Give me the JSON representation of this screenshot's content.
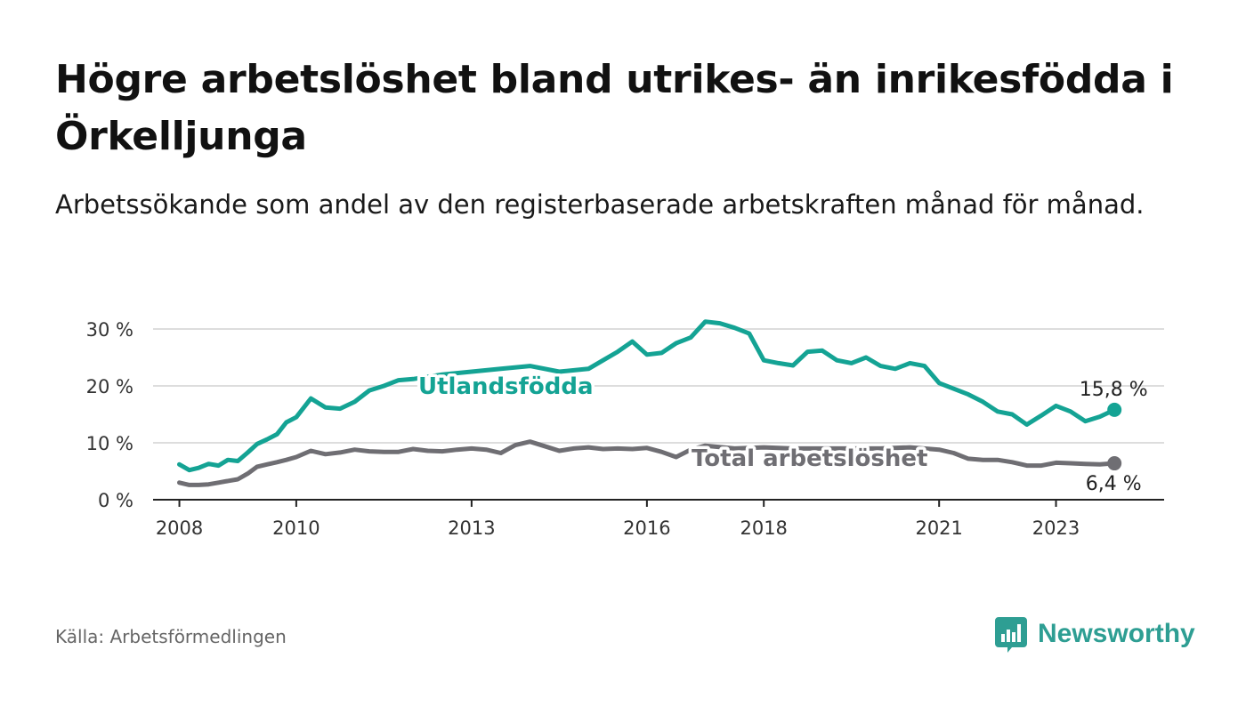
{
  "title": "Högre arbetslöshet bland utrikes- än inrikesfödda i Örkelljunga",
  "subtitle": "Arbetssökande som andel av den registerbaserade arbetskraften månad för månad.",
  "source": "Källa: Arbetsförmedlingen",
  "brand": "Newsworthy",
  "colors": {
    "utlandsfodda": "#14a394",
    "total": "#6f6e73",
    "grid": "#dddddd",
    "axis": "#222222",
    "brand": "#2e9e93"
  },
  "chart_data": {
    "type": "line",
    "title": "Högre arbetslöshet bland utrikes- än inrikesfödda i Örkelljunga",
    "xlabel": "",
    "ylabel": "",
    "xlim": [
      2007.55,
      2024.85
    ],
    "ylim": [
      0,
      30
    ],
    "y_ticks": [
      0,
      10,
      20,
      30
    ],
    "y_tick_labels": [
      "0 %",
      "10 %",
      "20 %",
      "30 %"
    ],
    "x_ticks": [
      2008,
      2010,
      2013,
      2016,
      2018,
      2021,
      2023
    ],
    "x_tick_labels": [
      "2008",
      "2010",
      "2013",
      "2016",
      "2018",
      "2021",
      "2023"
    ],
    "grid": true,
    "series": [
      {
        "name": "Utlandsfödda",
        "color": "#14a394",
        "end_label": "15,8 %",
        "x": [
          2008.0,
          2008.17,
          2008.33,
          2008.5,
          2008.67,
          2008.83,
          2009.0,
          2009.17,
          2009.33,
          2009.5,
          2009.67,
          2009.83,
          2010.0,
          2010.25,
          2010.5,
          2010.75,
          2011.0,
          2011.25,
          2011.5,
          2011.75,
          2012.0,
          2012.5,
          2013.0,
          2013.5,
          2014.0,
          2014.5,
          2015.0,
          2015.25,
          2015.5,
          2015.75,
          2016.0,
          2016.25,
          2016.5,
          2016.75,
          2017.0,
          2017.25,
          2017.5,
          2017.75,
          2018.0,
          2018.25,
          2018.5,
          2018.75,
          2019.0,
          2019.25,
          2019.5,
          2019.75,
          2020.0,
          2020.25,
          2020.5,
          2020.75,
          2021.0,
          2021.25,
          2021.5,
          2021.75,
          2022.0,
          2022.25,
          2022.5,
          2022.75,
          2023.0,
          2023.25,
          2023.5,
          2023.75,
          2024.0
        ],
        "y": [
          6.2,
          5.2,
          5.6,
          6.3,
          6.0,
          7.0,
          6.8,
          8.3,
          9.8,
          10.6,
          11.5,
          13.6,
          14.5,
          17.8,
          16.2,
          16.0,
          17.2,
          19.2,
          20.0,
          21.0,
          21.2,
          22.0,
          22.5,
          23.0,
          23.5,
          22.5,
          23.0,
          24.5,
          26.0,
          27.8,
          25.5,
          25.8,
          27.5,
          28.5,
          31.3,
          31.0,
          30.2,
          29.2,
          24.5,
          24.0,
          23.6,
          26.0,
          26.2,
          24.5,
          24.0,
          25.0,
          23.5,
          23.0,
          24.0,
          23.5,
          20.5,
          19.5,
          18.5,
          17.2,
          15.5,
          15.0,
          13.2,
          14.8,
          16.5,
          15.5,
          13.8,
          14.6,
          15.8
        ]
      },
      {
        "name": "Total arbetslöshet",
        "color": "#6f6e73",
        "end_label": "6,4 %",
        "x": [
          2008.0,
          2008.17,
          2008.33,
          2008.5,
          2008.67,
          2008.83,
          2009.0,
          2009.17,
          2009.33,
          2009.5,
          2009.67,
          2009.83,
          2010.0,
          2010.25,
          2010.5,
          2010.75,
          2011.0,
          2011.25,
          2011.5,
          2011.75,
          2012.0,
          2012.25,
          2012.5,
          2012.75,
          2013.0,
          2013.25,
          2013.5,
          2013.75,
          2014.0,
          2014.25,
          2014.5,
          2014.75,
          2015.0,
          2015.25,
          2015.5,
          2015.75,
          2016.0,
          2016.25,
          2016.5,
          2016.75,
          2017.0,
          2017.5,
          2018.0,
          2018.5,
          2019.0,
          2019.5,
          2020.0,
          2020.5,
          2021.0,
          2021.25,
          2021.5,
          2021.75,
          2022.0,
          2022.25,
          2022.5,
          2022.75,
          2023.0,
          2023.25,
          2023.5,
          2023.75,
          2024.0
        ],
        "y": [
          3.0,
          2.6,
          2.6,
          2.7,
          3.0,
          3.3,
          3.6,
          4.6,
          5.8,
          6.2,
          6.6,
          7.0,
          7.5,
          8.6,
          8.0,
          8.3,
          8.8,
          8.5,
          8.4,
          8.4,
          8.9,
          8.6,
          8.5,
          8.8,
          9.0,
          8.8,
          8.2,
          9.6,
          10.2,
          9.4,
          8.6,
          9.0,
          9.2,
          8.9,
          9.0,
          8.9,
          9.1,
          8.4,
          7.5,
          8.8,
          9.5,
          9.0,
          9.2,
          9.0,
          9.0,
          9.0,
          9.0,
          9.2,
          8.8,
          8.2,
          7.2,
          7.0,
          7.0,
          6.6,
          6.0,
          6.0,
          6.5,
          6.4,
          6.3,
          6.2,
          6.4
        ]
      }
    ]
  }
}
